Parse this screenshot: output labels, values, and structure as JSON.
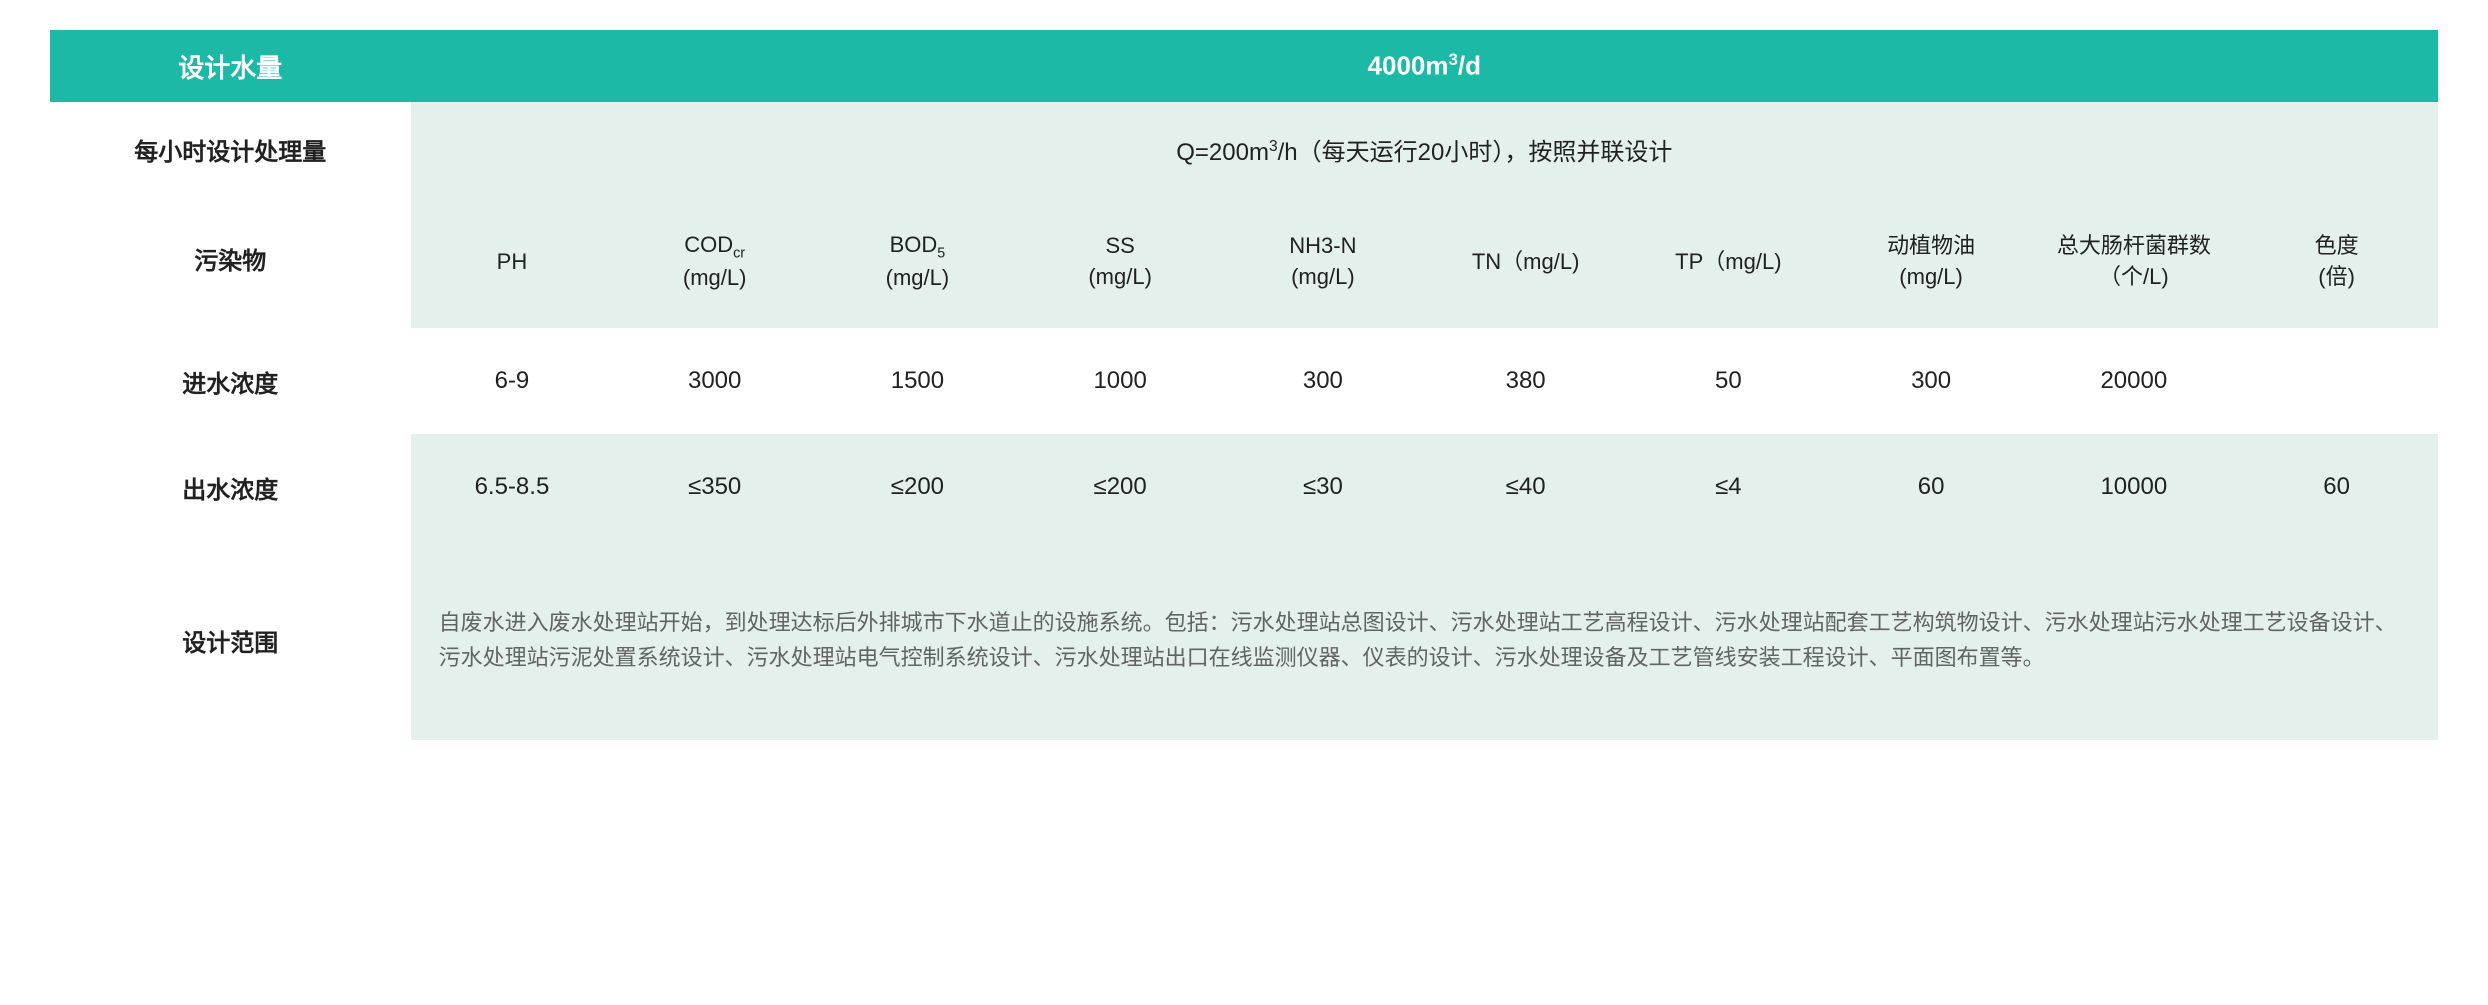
{
  "colors": {
    "teal": "#1bb9a6",
    "lightGreen": "#e4f0ec",
    "white": "#ffffff",
    "textDark": "#212121",
    "textGrey": "#636363"
  },
  "typography": {
    "headerFontSize": 26,
    "bodyFontSize": 24,
    "paramFontSize": 22,
    "scopeFontSize": 22,
    "fontFamily": "Microsoft YaHei"
  },
  "layout": {
    "labelColWidthPct": 15.1,
    "paramColCount": 10
  },
  "rows": {
    "designFlow": {
      "label": "设计水量",
      "value_html": "4000m<sup>3</sup>/d"
    },
    "hourly": {
      "label": "每小时设计处理量",
      "value_html": "Q=200m<sup>3</sup>/h（每天运行20小时），按照并联设计"
    },
    "pollutants": {
      "label": "污染物",
      "items": [
        "PH",
        "COD<sub>cr</sub><br>(mg/L)",
        "BOD<sub>5</sub><br>(mg/L)",
        "SS<br>(mg/L)",
        "NH3-N<br>(mg/L)",
        "TN（mg/L)",
        "TP（mg/L)",
        "动植物油<br>(mg/L)",
        "总大肠杆菌群数（个/L)",
        "色度<br>(倍)"
      ]
    },
    "inflow": {
      "label": "进水浓度",
      "values": [
        "6-9",
        "3000",
        "1500",
        "1000",
        "300",
        "380",
        "50",
        "300",
        "20000",
        ""
      ]
    },
    "outflow": {
      "label": "出水浓度",
      "values": [
        "6.5-8.5",
        "≤350",
        "≤200",
        "≤200",
        "≤30",
        "≤40",
        "≤4",
        "60",
        "10000",
        "60"
      ]
    },
    "scope": {
      "label": "设计范围",
      "text": "自废水进入废水处理站开始，到处理达标后外排城市下水道止的设施系统。包括：污水处理站总图设计、污水处理站工艺高程设计、污水处理站配套工艺构筑物设计、污水处理站污水处理工艺设备设计、污水处理站污泥处置系统设计、污水处理站电气控制系统设计、污水处理站出口在线监测仪器、仪表的设计、污水处理设备及工艺管线安装工程设计、平面图布置等。"
    }
  }
}
